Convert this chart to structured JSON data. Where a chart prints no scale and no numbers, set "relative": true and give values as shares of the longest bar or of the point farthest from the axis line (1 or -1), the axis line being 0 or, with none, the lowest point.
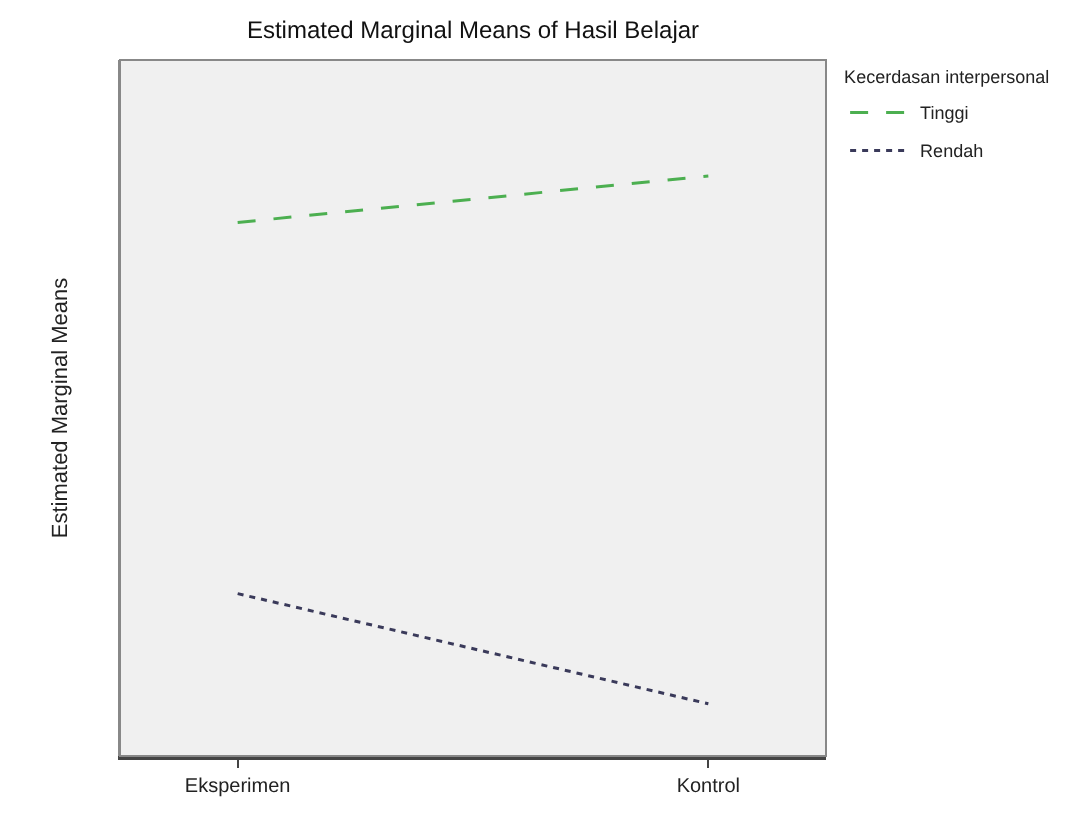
{
  "chart_data": {
    "type": "line",
    "title": "Estimated Marginal Means of Hasil Belajar",
    "ylabel": "Estimated Marginal Means",
    "legend_title": "Kecerdasan interpersonal",
    "categories": [
      "Eksperimen",
      "Kontrol"
    ],
    "relative": true,
    "series": [
      {
        "name": "Tinggi",
        "color": "#4caf50",
        "values": [
          0.92,
          1.0
        ],
        "line_style": "dashed"
      },
      {
        "name": "Rendah",
        "color": "#3a3a5a",
        "values": [
          0.28,
          0.09
        ],
        "line_style": "dotted"
      }
    ],
    "legend": "top right",
    "grid": false,
    "marker": "none"
  }
}
